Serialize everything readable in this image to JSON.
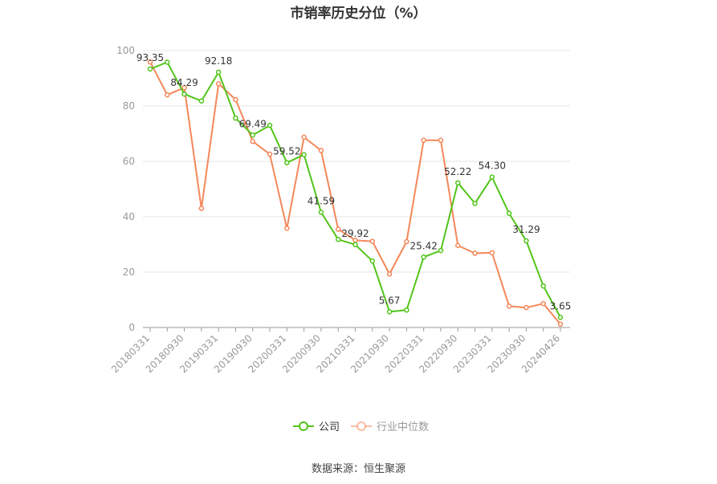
{
  "chart_data": {
    "type": "line",
    "title": "市销率历史分位（%）",
    "x": [
      "20180331",
      "20180630",
      "20180930",
      "20181231",
      "20190331",
      "20190630",
      "20190930",
      "20191231",
      "20200331",
      "20200630",
      "20200930",
      "20201231",
      "20210331",
      "20210630",
      "20210930",
      "20211231",
      "20220331",
      "20220630",
      "20220930",
      "20221231",
      "20230331",
      "20230630",
      "20230930",
      "20231231",
      "20240426"
    ],
    "x_tick_labels": [
      "20180331",
      "20180930",
      "20190331",
      "20190930",
      "20200331",
      "20200930",
      "20210331",
      "20210930",
      "20220331",
      "20220930",
      "20230331",
      "20230930",
      "20240426"
    ],
    "ylim": [
      0,
      100
    ],
    "y_ticks": [
      "0",
      "20",
      "40",
      "60",
      "80",
      "100"
    ],
    "grid": "horizontal",
    "legend": "bottom-center",
    "series": [
      {
        "name": "公司",
        "color": "#52c41a",
        "values": [
          93.35,
          95.8,
          84.29,
          81.8,
          92.18,
          75.6,
          69.49,
          73.0,
          59.52,
          62.4,
          41.59,
          31.8,
          29.92,
          24.0,
          5.67,
          6.3,
          25.42,
          27.8,
          52.22,
          44.8,
          54.3,
          41.2,
          31.29,
          15.0,
          3.65
        ],
        "data_labels": [
          {
            "i": 0,
            "text": "93.35"
          },
          {
            "i": 2,
            "text": "84.29"
          },
          {
            "i": 4,
            "text": "92.18"
          },
          {
            "i": 6,
            "text": "69.49"
          },
          {
            "i": 8,
            "text": "59.52"
          },
          {
            "i": 10,
            "text": "41.59"
          },
          {
            "i": 12,
            "text": "29.92"
          },
          {
            "i": 14,
            "text": "5.67"
          },
          {
            "i": 16,
            "text": "25.42"
          },
          {
            "i": 18,
            "text": "52.22"
          },
          {
            "i": 20,
            "text": "54.30"
          },
          {
            "i": 22,
            "text": "31.29"
          },
          {
            "i": 24,
            "text": "3.65"
          }
        ]
      },
      {
        "name": "行业中位数",
        "color": "#f4875a",
        "values": [
          95.9,
          84.0,
          86.6,
          43.0,
          88.0,
          82.3,
          67.2,
          62.6,
          35.8,
          68.7,
          63.9,
          35.5,
          31.5,
          31.1,
          19.3,
          31.0,
          67.6,
          67.6,
          29.6,
          26.8,
          27.0,
          7.7,
          7.2,
          8.6,
          1.2
        ]
      }
    ]
  },
  "source": "数据来源：恒生聚源"
}
